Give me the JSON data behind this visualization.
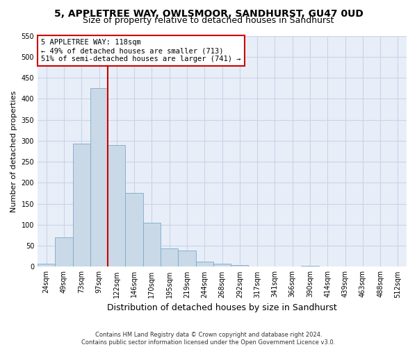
{
  "title": "5, APPLETREE WAY, OWLSMOOR, SANDHURST, GU47 0UD",
  "subtitle": "Size of property relative to detached houses in Sandhurst",
  "xlabel": "Distribution of detached houses by size in Sandhurst",
  "ylabel": "Number of detached properties",
  "categories": [
    "24sqm",
    "49sqm",
    "73sqm",
    "97sqm",
    "122sqm",
    "146sqm",
    "170sqm",
    "195sqm",
    "219sqm",
    "244sqm",
    "268sqm",
    "292sqm",
    "317sqm",
    "341sqm",
    "366sqm",
    "390sqm",
    "414sqm",
    "439sqm",
    "463sqm",
    "488sqm",
    "512sqm"
  ],
  "values": [
    7,
    70,
    293,
    425,
    290,
    175,
    105,
    43,
    38,
    13,
    8,
    4,
    1,
    1,
    0,
    2,
    0,
    1,
    0,
    0,
    1
  ],
  "bar_color": "#c9d9e8",
  "bar_edge_color": "#7aaac8",
  "vline_color": "#cc0000",
  "annotation_text": "5 APPLETREE WAY: 118sqm\n← 49% of detached houses are smaller (713)\n51% of semi-detached houses are larger (741) →",
  "annotation_box_edge": "#cc0000",
  "ylim": [
    0,
    550
  ],
  "yticks": [
    0,
    50,
    100,
    150,
    200,
    250,
    300,
    350,
    400,
    450,
    500,
    550
  ],
  "grid_color": "#c8d4e8",
  "background_color": "#e8eef8",
  "footnote1": "Contains HM Land Registry data © Crown copyright and database right 2024.",
  "footnote2": "Contains public sector information licensed under the Open Government Licence v3.0.",
  "title_fontsize": 10,
  "subtitle_fontsize": 9,
  "xlabel_fontsize": 9,
  "ylabel_fontsize": 8,
  "tick_fontsize": 7,
  "annotation_fontsize": 7.5
}
